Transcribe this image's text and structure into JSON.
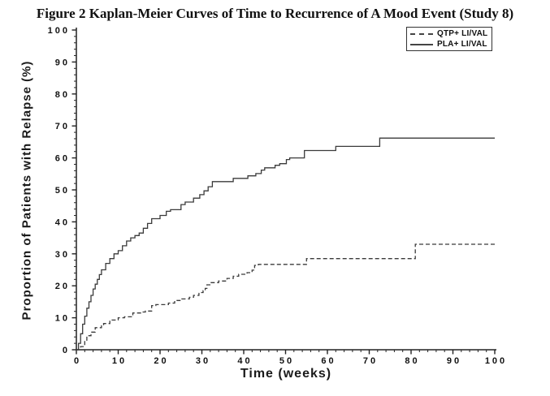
{
  "figure_title": "Figure 2 Kaplan-Meier Curves of Time to Recurrence of A Mood Event (Study 8)",
  "chart_data": {
    "type": "line",
    "subtype": "kaplan-meier-step",
    "title": "Figure 2 Kaplan-Meier Curves of Time to Recurrence of A Mood Event (Study 8)",
    "xlabel": "Time (weeks)",
    "ylabel": "Proportion of Patients with Relapse (%)",
    "xlim": [
      0,
      100
    ],
    "ylim": [
      0,
      100
    ],
    "x_major_ticks": [
      0,
      10,
      20,
      30,
      40,
      50,
      60,
      70,
      80,
      90,
      100
    ],
    "y_major_ticks": [
      0,
      10,
      20,
      30,
      40,
      50,
      60,
      70,
      80,
      90,
      100
    ],
    "minor_tick_step": 2,
    "grid": false,
    "legend_position": "top-right",
    "axis_color": "#222222",
    "series": [
      {
        "id": "qtp-li-val",
        "name": "QTP+ LI/VAL",
        "line_style": "dashed",
        "color": "#3a3a3a",
        "points": [
          [
            0,
            0
          ],
          [
            1,
            1
          ],
          [
            2,
            3
          ],
          [
            2.5,
            4.4
          ],
          [
            3.5,
            5.5
          ],
          [
            4.5,
            6.9
          ],
          [
            6,
            7.8
          ],
          [
            6.5,
            8.2
          ],
          [
            8,
            9.3
          ],
          [
            10,
            10
          ],
          [
            11.5,
            10.3
          ],
          [
            13.5,
            11.5
          ],
          [
            15.5,
            11.8
          ],
          [
            16.5,
            12.1
          ],
          [
            18,
            13.8
          ],
          [
            19,
            14.1
          ],
          [
            22,
            14.6
          ],
          [
            23.5,
            15.4
          ],
          [
            25.2,
            15.9
          ],
          [
            27,
            16.4
          ],
          [
            28,
            17
          ],
          [
            29.3,
            17.9
          ],
          [
            30.3,
            18.5
          ],
          [
            30.8,
            19.2
          ],
          [
            31.2,
            20.3
          ],
          [
            32.2,
            21
          ],
          [
            34,
            21.5
          ],
          [
            36,
            22.3
          ],
          [
            37.5,
            23
          ],
          [
            38.8,
            23.6
          ],
          [
            40.8,
            24.1
          ],
          [
            42,
            24.9
          ],
          [
            42.6,
            26.4
          ],
          [
            43.5,
            26.7
          ],
          [
            55,
            28.5
          ],
          [
            81,
            33
          ],
          [
            100,
            33
          ]
        ]
      },
      {
        "id": "pla-li-val",
        "name": "PLA+ LI/VAL",
        "line_style": "solid",
        "color": "#3a3a3a",
        "points": [
          [
            0,
            0
          ],
          [
            0.5,
            2
          ],
          [
            1,
            5
          ],
          [
            1.5,
            8
          ],
          [
            2,
            10.5
          ],
          [
            2.5,
            13
          ],
          [
            3,
            15
          ],
          [
            3.5,
            17
          ],
          [
            4,
            19
          ],
          [
            4.5,
            20.5
          ],
          [
            5,
            22
          ],
          [
            5.5,
            23.5
          ],
          [
            6,
            25
          ],
          [
            7,
            27
          ],
          [
            8,
            28.5
          ],
          [
            9,
            30
          ],
          [
            10,
            31
          ],
          [
            11,
            32.5
          ],
          [
            12,
            34
          ],
          [
            13,
            35
          ],
          [
            14,
            35.7
          ],
          [
            15,
            36.5
          ],
          [
            16,
            38
          ],
          [
            17,
            39.5
          ],
          [
            18,
            41
          ],
          [
            20,
            42
          ],
          [
            21.5,
            43.3
          ],
          [
            22.5,
            43.8
          ],
          [
            25,
            45.4
          ],
          [
            26,
            46.2
          ],
          [
            28,
            47.4
          ],
          [
            29.5,
            48.5
          ],
          [
            30.5,
            49.7
          ],
          [
            31.5,
            51
          ],
          [
            32.5,
            52.6
          ],
          [
            37.5,
            53.6
          ],
          [
            41,
            54.4
          ],
          [
            42.9,
            55.1
          ],
          [
            44.2,
            56.2
          ],
          [
            45,
            56.9
          ],
          [
            47.5,
            57.7
          ],
          [
            48.6,
            58.2
          ],
          [
            50.2,
            59.5
          ],
          [
            51,
            60
          ],
          [
            54.5,
            62.3
          ],
          [
            62,
            63.6
          ],
          [
            72.5,
            66.2
          ],
          [
            100,
            66.2
          ]
        ]
      }
    ]
  }
}
